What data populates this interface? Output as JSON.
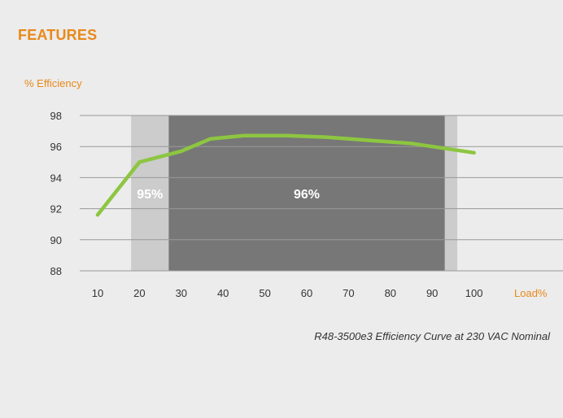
{
  "page": {
    "heading": "FEATURES",
    "caption": "R48-3500e3 Efficiency Curve at 230 VAC Nominal"
  },
  "colors": {
    "accent": "#e8891a",
    "curve": "#8dc641",
    "band_light": "#cccccc",
    "band_dark": "#777777",
    "grid": "#999999"
  },
  "chart_data": {
    "type": "line",
    "title": "",
    "xlabel": "Load%",
    "ylabel": "% Efficiency",
    "xlim": [
      10,
      100
    ],
    "ylim": [
      88,
      98
    ],
    "x_ticks": [
      10,
      20,
      30,
      40,
      50,
      60,
      70,
      80,
      90,
      100
    ],
    "y_ticks": [
      88,
      90,
      92,
      94,
      96,
      98
    ],
    "grid": true,
    "series": [
      {
        "x": [
          10,
          20,
          30,
          37,
          45,
          55,
          65,
          75,
          85,
          100
        ],
        "values": [
          91.6,
          95.0,
          95.7,
          96.5,
          96.7,
          96.7,
          96.6,
          96.4,
          96.2,
          95.6
        ]
      }
    ],
    "bands": [
      {
        "from": 18,
        "to": 96,
        "label": "95%",
        "shade": "light"
      },
      {
        "from": 27,
        "to": 93,
        "label": "96%",
        "shade": "dark"
      }
    ]
  }
}
